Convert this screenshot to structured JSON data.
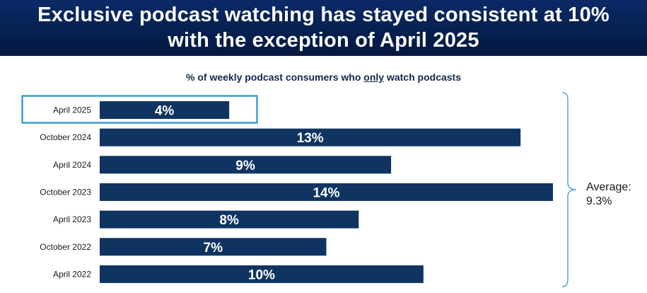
{
  "header": {
    "title_line1": "Exclusive podcast watching has stayed consistent at 10%",
    "title_line2": "with the exception of April 2025"
  },
  "colors": {
    "header_bg": "#062050",
    "bar": "#0f3461",
    "highlight_box": "#3aa0d8",
    "brace": "#5ba7d6"
  },
  "chart_data": {
    "type": "bar",
    "orientation": "horizontal",
    "subtitle_parts": [
      "% of weekly podcast consumers who ",
      "only",
      " watch podcasts"
    ],
    "categories": [
      "April 2025",
      "October 2024",
      "April 2024",
      "October 2023",
      "April 2023",
      "October 2022",
      "April 2022"
    ],
    "values": [
      4,
      13,
      9,
      14,
      8,
      7,
      10
    ],
    "data_labels": [
      "4%",
      "13%",
      "9%",
      "14%",
      "8%",
      "7%",
      "10%"
    ],
    "xlim": [
      0,
      14
    ],
    "grid": false,
    "legend": "none",
    "highlighted_category": "April 2025",
    "annotation": {
      "label": "Average:",
      "value": "9.3%"
    }
  }
}
